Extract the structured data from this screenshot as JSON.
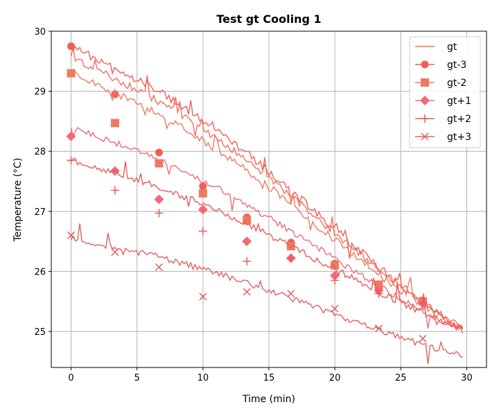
{
  "chart_data": {
    "type": "line",
    "title": "Test gt Cooling 1",
    "xlabel": "Time (min)",
    "ylabel": "Temperature (°C)",
    "xlim": [
      -1.5,
      31.5
    ],
    "ylim": [
      24.4,
      30.0
    ],
    "xticks": [
      0,
      5,
      10,
      15,
      20,
      25,
      30
    ],
    "yticks": [
      25,
      26,
      27,
      28,
      29,
      30
    ],
    "grid": true,
    "legend_position": "top-right",
    "marker_x": [
      0,
      3.33,
      6.67,
      10,
      13.33,
      16.67,
      20,
      23.33,
      26.67
    ],
    "series": [
      {
        "name": "gt",
        "color": "#f07060",
        "marker": "none",
        "start": 29.55,
        "end": 25.3,
        "noise": 0.12
      },
      {
        "name": "gt-3",
        "color": "#f06055",
        "marker": "circle",
        "start": 29.75,
        "end": 25.3,
        "noise": 0.14,
        "marker_y": [
          29.75,
          28.95,
          27.98,
          27.42,
          26.9,
          26.48,
          26.13,
          25.7,
          25.5
        ]
      },
      {
        "name": "gt-2",
        "color": "#ee7a60",
        "marker": "square",
        "start": 29.3,
        "end": 25.25,
        "noise": 0.12,
        "marker_y": [
          29.3,
          28.47,
          27.8,
          27.3,
          26.85,
          26.42,
          26.1,
          25.78,
          25.5
        ]
      },
      {
        "name": "gt+1",
        "color": "#f26a78",
        "marker": "diamond",
        "start": 28.4,
        "end": 25.2,
        "noise": 0.1,
        "marker_y": [
          28.25,
          27.67,
          27.2,
          27.03,
          26.5,
          26.22,
          25.93,
          25.68,
          25.47
        ]
      },
      {
        "name": "gt+2",
        "color": "#e85a5a",
        "marker": "plus",
        "start": 27.85,
        "end": 25.2,
        "noise": 0.11,
        "marker_y": [
          27.85,
          27.35,
          26.97,
          26.67,
          26.17,
          26.22,
          25.85,
          25.63,
          25.48
        ]
      },
      {
        "name": "gt+3",
        "color": "#e06060",
        "marker": "x",
        "start": 26.55,
        "end": 24.7,
        "noise": 0.1,
        "marker_y": [
          26.6,
          26.32,
          26.07,
          25.58,
          25.66,
          25.63,
          25.38,
          25.05,
          24.88
        ]
      }
    ]
  }
}
